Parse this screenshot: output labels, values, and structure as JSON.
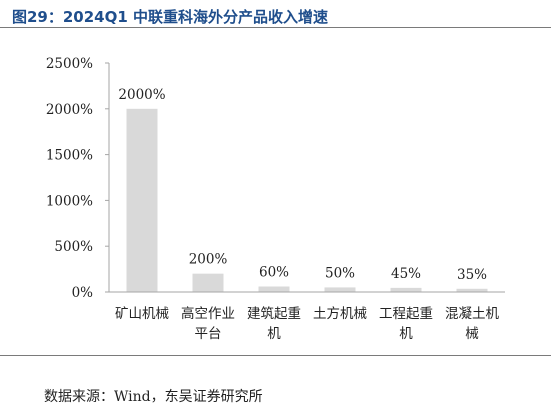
{
  "figure_title": "图29：2024Q1 中联重科海外分产品收入增速",
  "source_note": "数据来源：Wind，东吴证券研究所",
  "chart_data": {
    "type": "bar",
    "title": "",
    "xlabel": "",
    "ylabel": "",
    "categories": [
      [
        "矿山机械"
      ],
      [
        "高空作业",
        "平台"
      ],
      [
        "建筑起重",
        "机"
      ],
      [
        "土方机械"
      ],
      [
        "工程起重",
        "机"
      ],
      [
        "混凝土机",
        "械"
      ]
    ],
    "values": [
      2000,
      200,
      60,
      50,
      45,
      35
    ],
    "value_labels": [
      "2000%",
      "200%",
      "60%",
      "50%",
      "45%",
      "35%"
    ],
    "yticks": [
      0,
      500,
      1000,
      1500,
      2000,
      2500
    ],
    "ytick_labels": [
      "0%",
      "500%",
      "1000%",
      "1500%",
      "2000%",
      "2500%"
    ],
    "ylim": [
      0,
      2500
    ],
    "grid": false,
    "legend": "none",
    "bar_color": "#d9d9d9",
    "axis_color": "#a6a6a6"
  }
}
